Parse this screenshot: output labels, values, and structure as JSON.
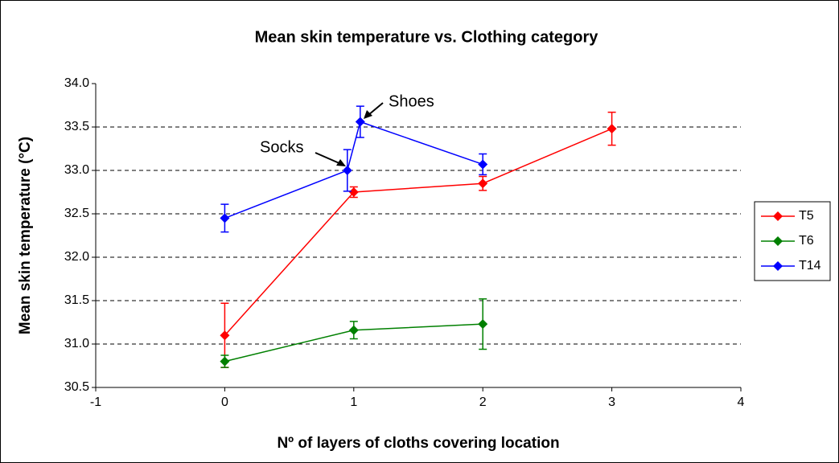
{
  "chart_data": {
    "type": "scatter",
    "title": "Mean skin temperature vs. Clothing category",
    "x_label": "Nº of layers of cloths covering location",
    "y_label": "Mean skin temperature (°C)",
    "xlim": [
      -1,
      4
    ],
    "xticks": [
      -1,
      0,
      1,
      2,
      3,
      4
    ],
    "ylim": [
      30.5,
      34.0
    ],
    "yticks": [
      30.5,
      {
        "value": 31,
        "label": "31.0"
      },
      31.5,
      {
        "value": 32,
        "label": "32.0"
      },
      32.5,
      {
        "value": 33,
        "label": "33.0"
      },
      33.5,
      {
        "value": 34,
        "label": "34.0"
      }
    ],
    "grid": true,
    "legend": "right",
    "series": [
      {
        "name": "T5",
        "color": "#ff0000",
        "x": [
          0,
          1,
          2,
          3
        ],
        "values": [
          31.1,
          32.75,
          32.85,
          33.48
        ],
        "errors": [
          0.37,
          0.06,
          0.08,
          0.19
        ]
      },
      {
        "name": "T6",
        "color": "#008000",
        "x": [
          0,
          1,
          2
        ],
        "values": [
          30.8,
          31.16,
          31.23
        ],
        "errors": [
          0.07,
          0.1,
          0.29
        ]
      },
      {
        "name": "T14",
        "color": "#0000ff",
        "x": [
          0,
          0.95,
          1.05,
          2
        ],
        "values": [
          32.45,
          33.0,
          33.56,
          33.07
        ],
        "errors": [
          0.16,
          0.24,
          0.18,
          0.12
        ]
      }
    ],
    "annotations": [
      "Socks",
      "Shoes"
    ]
  }
}
